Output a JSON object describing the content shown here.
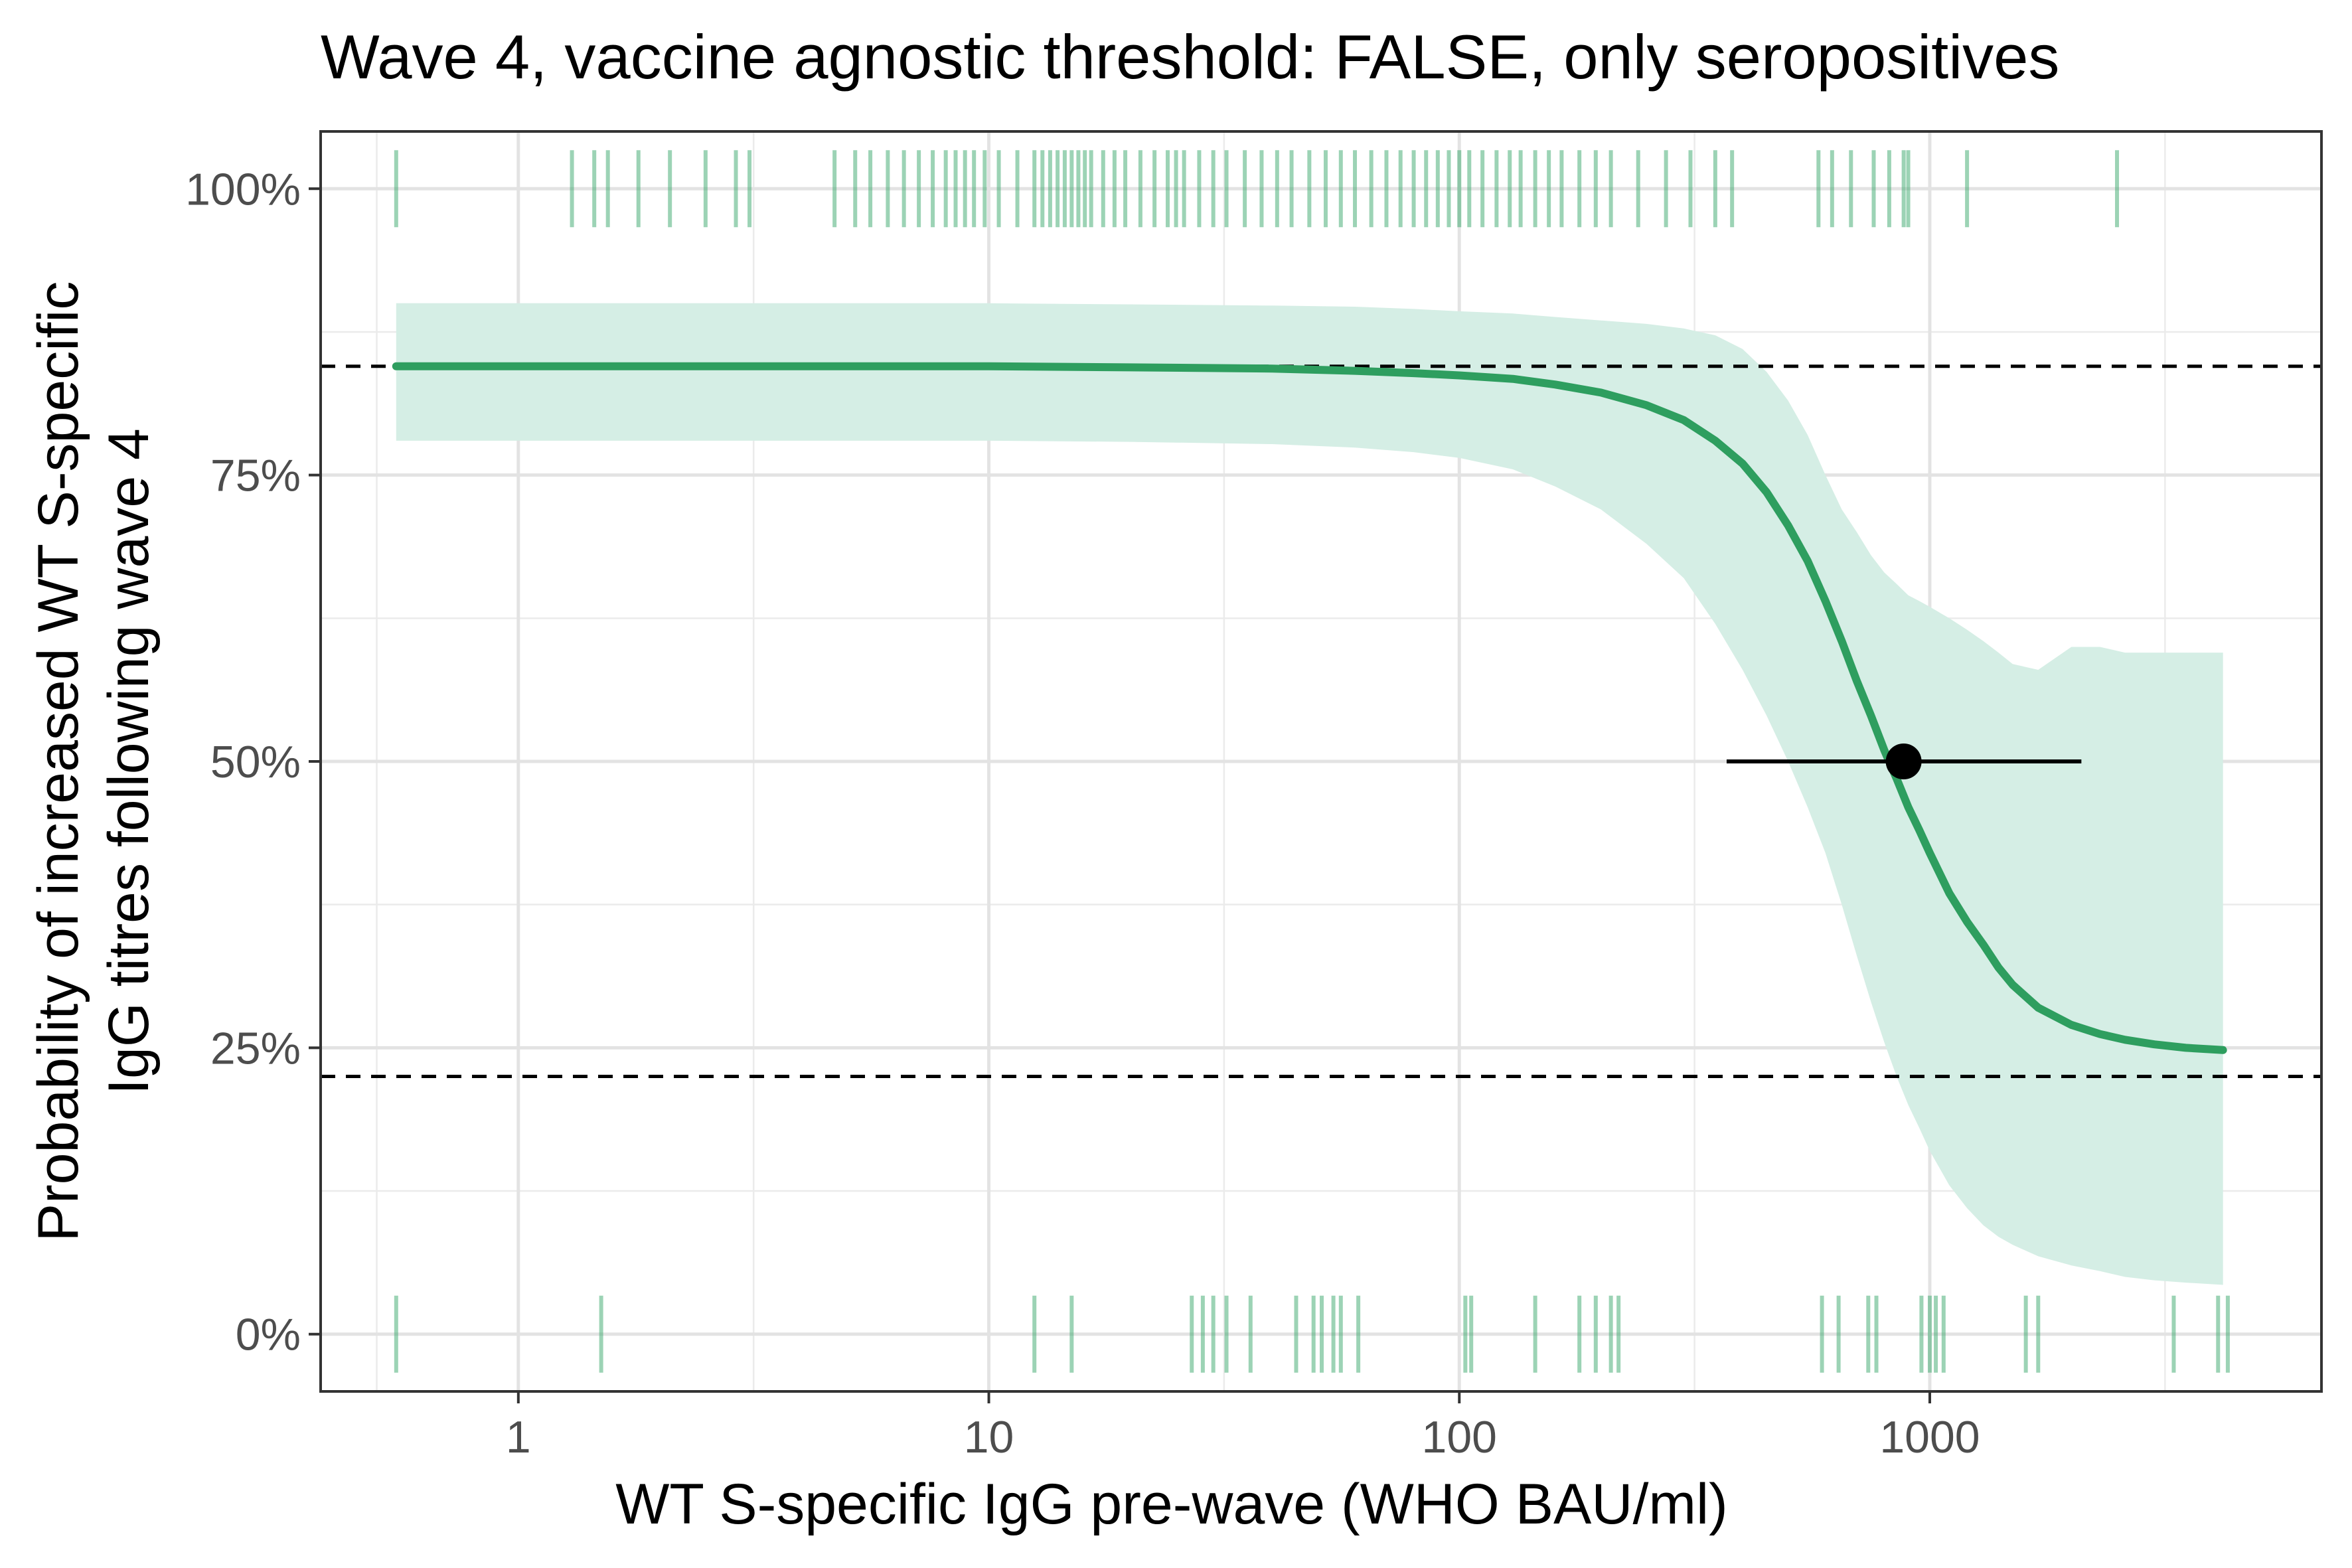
{
  "chart_data": {
    "type": "line",
    "title": "Wave 4, vaccine agnostic threshold: FALSE, only seropositives",
    "xlabel": "WT S-specific IgG pre-wave (WHO BAU/ml)",
    "ylabel_lines": [
      "Probability of increased WT S-specific",
      "IgG titres following wave 4"
    ],
    "x_scale": "log10",
    "xlim": [
      0.38,
      6800
    ],
    "ylim": [
      -0.05,
      1.05
    ],
    "x_ticks": [
      {
        "value": 1,
        "label": "1"
      },
      {
        "value": 10,
        "label": "10"
      },
      {
        "value": 100,
        "label": "100"
      },
      {
        "value": 1000,
        "label": "1000"
      }
    ],
    "y_ticks": [
      {
        "value": 0,
        "label": "0%"
      },
      {
        "value": 0.25,
        "label": "25%"
      },
      {
        "value": 0.5,
        "label": "50%"
      },
      {
        "value": 0.75,
        "label": "75%"
      },
      {
        "value": 1,
        "label": "100%"
      }
    ],
    "grid": true,
    "colors": {
      "curve": "#2e9e5f",
      "ribbon": "#d5eee5",
      "rug": "#3aa86b",
      "reference_line": "#000000",
      "point": "#000000"
    },
    "reference_lines_y": [
      0.845,
      0.225
    ],
    "fitted_curve": {
      "x": [
        0.55,
        1,
        2,
        5,
        10,
        20,
        40,
        60,
        80,
        100,
        130,
        160,
        200,
        250,
        300,
        350,
        400,
        450,
        500,
        550,
        600,
        650,
        700,
        750,
        800,
        850,
        900,
        950,
        1000,
        1100,
        1200,
        1300,
        1400,
        1500,
        1700,
        2000,
        2300,
        2600,
        3000,
        3500,
        4200
      ],
      "y": [
        0.845,
        0.845,
        0.845,
        0.845,
        0.845,
        0.844,
        0.843,
        0.841,
        0.839,
        0.837,
        0.834,
        0.829,
        0.822,
        0.811,
        0.798,
        0.78,
        0.76,
        0.735,
        0.706,
        0.675,
        0.64,
        0.605,
        0.57,
        0.54,
        0.51,
        0.485,
        0.46,
        0.44,
        0.42,
        0.385,
        0.36,
        0.34,
        0.32,
        0.305,
        0.285,
        0.27,
        0.262,
        0.257,
        0.253,
        0.25,
        0.248
      ]
    },
    "ribbon_lower": [
      0.78,
      0.78,
      0.78,
      0.78,
      0.78,
      0.779,
      0.777,
      0.774,
      0.77,
      0.765,
      0.755,
      0.74,
      0.72,
      0.69,
      0.66,
      0.62,
      0.58,
      0.54,
      0.5,
      0.46,
      0.42,
      0.375,
      0.33,
      0.29,
      0.255,
      0.225,
      0.2,
      0.18,
      0.16,
      0.13,
      0.11,
      0.095,
      0.085,
      0.078,
      0.068,
      0.06,
      0.055,
      0.05,
      0.047,
      0.045,
      0.043
    ],
    "ribbon_upper": [
      0.9,
      0.9,
      0.9,
      0.9,
      0.9,
      0.899,
      0.898,
      0.897,
      0.895,
      0.893,
      0.891,
      0.888,
      0.885,
      0.882,
      0.878,
      0.872,
      0.86,
      0.84,
      0.815,
      0.785,
      0.75,
      0.72,
      0.7,
      0.68,
      0.665,
      0.655,
      0.645,
      0.64,
      0.635,
      0.625,
      0.615,
      0.605,
      0.595,
      0.585,
      0.58,
      0.6,
      0.6,
      0.595,
      0.595,
      0.595,
      0.595
    ]
  },
  "threshold_estimate": {
    "x": 880,
    "y": 0.5,
    "x_low": 370,
    "x_high": 2100
  },
  "rug_top": [
    0.55,
    1.3,
    1.45,
    1.55,
    1.8,
    2.1,
    2.5,
    2.9,
    3.1,
    4.7,
    5.2,
    5.6,
    6.1,
    6.6,
    7.1,
    7.6,
    8.1,
    8.5,
    8.9,
    9.3,
    9.8,
    10.5,
    11.5,
    12.5,
    13,
    13.5,
    14,
    14.5,
    15,
    15.5,
    16,
    16.5,
    17.5,
    18.5,
    19.5,
    21,
    22.5,
    24,
    25,
    26,
    28,
    30,
    32,
    35,
    38,
    41,
    44,
    48,
    52,
    56,
    60,
    65,
    70,
    75,
    80,
    85,
    90,
    95,
    100,
    105,
    112,
    120,
    128,
    135,
    145,
    155,
    165,
    180,
    195,
    210,
    240,
    275,
    310,
    350,
    380,
    580,
    620,
    680,
    760,
    820,
    880,
    900,
    1200,
    2500
  ],
  "rug_bottom": [
    0.55,
    1.5,
    12.5,
    15,
    27,
    28.5,
    30,
    32,
    36,
    45,
    49,
    51,
    54,
    56,
    61,
    103,
    106,
    145,
    180,
    195,
    210,
    218,
    590,
    640,
    740,
    770,
    960,
    1000,
    1030,
    1070,
    1600,
    1700,
    3300,
    4100,
    4300
  ]
}
